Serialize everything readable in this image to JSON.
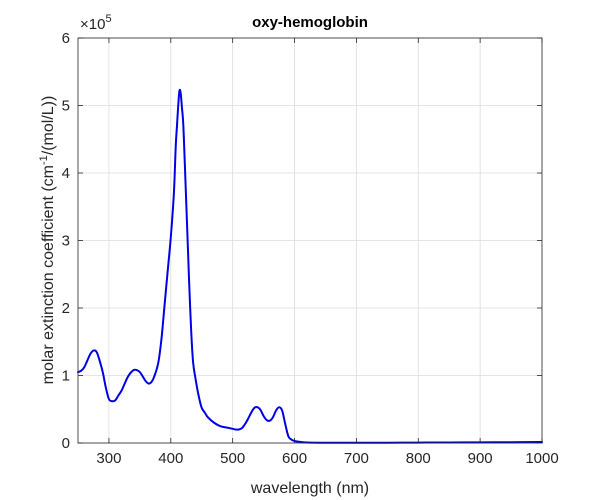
{
  "chart_data": {
    "type": "line",
    "title": "oxy-hemoglobin",
    "xlabel": "wavelength (nm)",
    "ylabel_main": "molar extinction coefficient (cm",
    "ylabel_sup": "-1",
    "ylabel_end": "/(mol/L))",
    "y_multiplier_base": "×10",
    "y_multiplier_exp": "5",
    "xlim": [
      250,
      1000
    ],
    "ylim": [
      0,
      6
    ],
    "xticks": [
      300,
      400,
      500,
      600,
      700,
      800,
      900,
      1000
    ],
    "yticks": [
      0,
      1,
      2,
      3,
      4,
      5,
      6
    ],
    "grid": true,
    "line_color": "#0000e6",
    "series": [
      {
        "x": [
          250,
          255,
          260,
          265,
          270,
          275,
          280,
          285,
          290,
          295,
          300,
          305,
          310,
          315,
          320,
          325,
          330,
          335,
          340,
          345,
          350,
          355,
          360,
          365,
          370,
          375,
          380,
          385,
          390,
          395,
          400,
          405,
          408,
          410,
          412,
          414,
          416,
          418,
          420,
          422,
          425,
          428,
          430,
          433,
          436,
          440,
          445,
          450,
          455,
          460,
          470,
          480,
          490,
          500,
          505,
          510,
          515,
          520,
          525,
          530,
          535,
          540,
          545,
          550,
          555,
          560,
          565,
          570,
          575,
          580,
          585,
          590,
          595,
          600,
          610,
          620,
          650,
          700,
          750,
          800,
          850,
          900,
          950,
          1000
        ],
        "y": [
          1.05,
          1.07,
          1.12,
          1.22,
          1.32,
          1.37,
          1.35,
          1.22,
          1.05,
          0.82,
          0.65,
          0.62,
          0.63,
          0.7,
          0.77,
          0.87,
          0.97,
          1.04,
          1.08,
          1.08,
          1.05,
          0.98,
          0.91,
          0.88,
          0.92,
          1.03,
          1.2,
          1.55,
          2.05,
          2.55,
          3.05,
          3.7,
          4.4,
          4.7,
          5.0,
          5.22,
          5.18,
          4.97,
          4.75,
          4.3,
          3.55,
          2.8,
          2.3,
          1.65,
          1.2,
          0.95,
          0.7,
          0.52,
          0.45,
          0.38,
          0.3,
          0.25,
          0.23,
          0.21,
          0.2,
          0.2,
          0.22,
          0.28,
          0.36,
          0.45,
          0.52,
          0.53,
          0.49,
          0.4,
          0.34,
          0.33,
          0.38,
          0.48,
          0.53,
          0.48,
          0.28,
          0.1,
          0.05,
          0.03,
          0.015,
          0.008,
          0.004,
          0.003,
          0.004,
          0.006,
          0.008,
          0.01,
          0.012,
          0.014
        ]
      }
    ]
  }
}
